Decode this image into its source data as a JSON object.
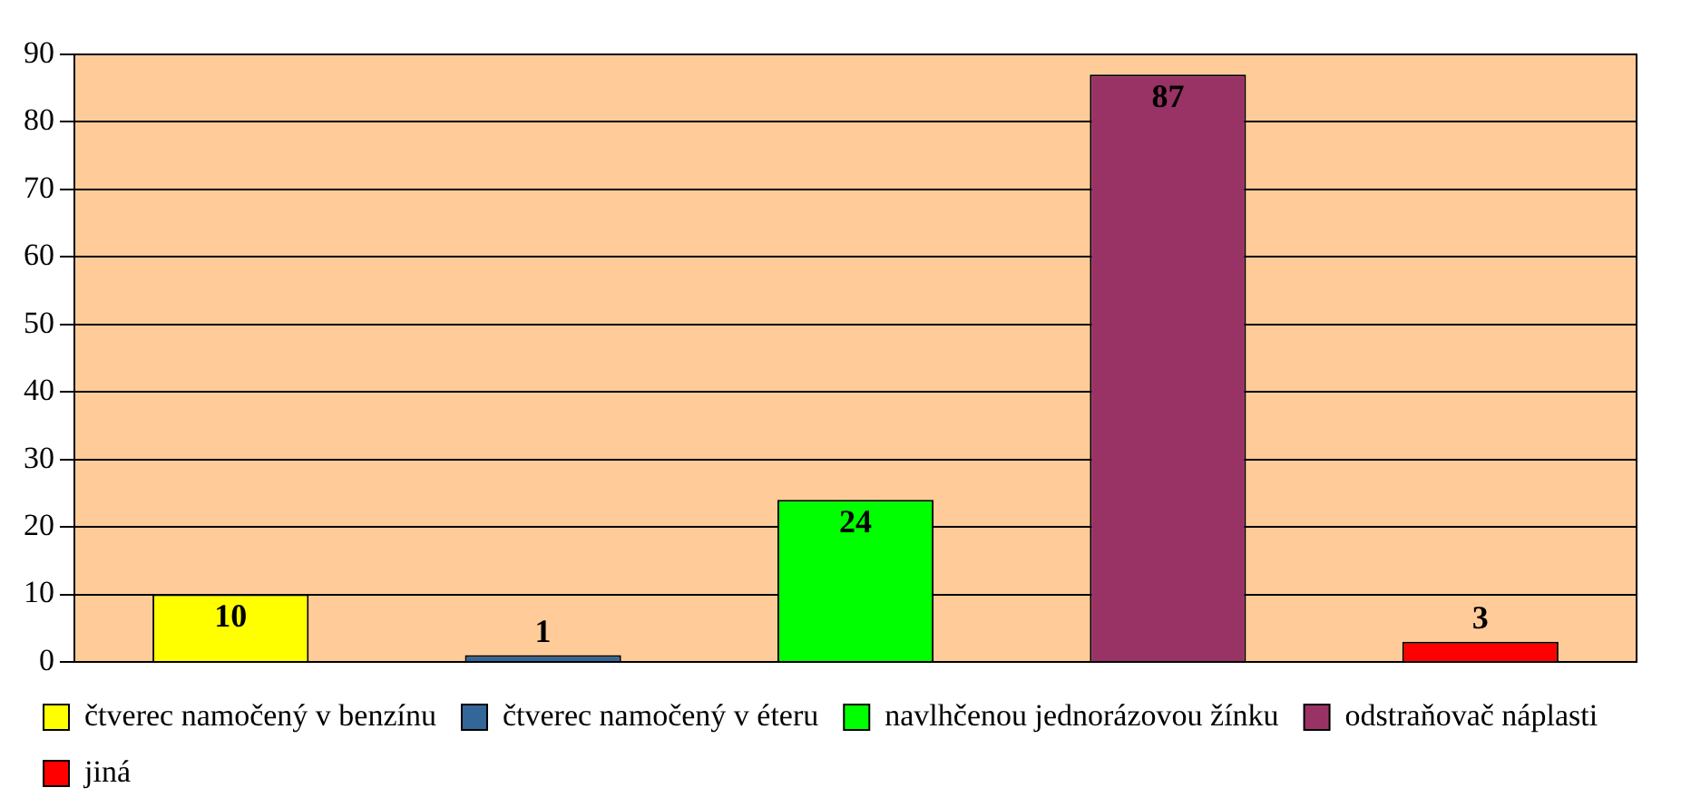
{
  "chart_data": {
    "type": "bar",
    "categories": [
      null,
      null,
      null,
      null,
      null
    ],
    "series": [
      {
        "name": "čtverec namočený v benzínu",
        "color": "#ffff00",
        "values": [
          10,
          null,
          null,
          null,
          null
        ]
      },
      {
        "name": "čtverec namočený v éteru",
        "color": "#336699",
        "values": [
          null,
          1,
          null,
          null,
          null
        ]
      },
      {
        "name": "navlhčenou jednorázovou žínku",
        "color": "#00ff00",
        "values": [
          null,
          null,
          24,
          null,
          null
        ]
      },
      {
        "name": "odstraňovač náplasti",
        "color": "#993366",
        "values": [
          null,
          null,
          null,
          87,
          null
        ]
      },
      {
        "name": "jiná",
        "color": "#ff0000",
        "values": [
          null,
          null,
          null,
          null,
          3
        ]
      }
    ],
    "ylim": [
      0,
      90
    ],
    "yticks": [
      0,
      10,
      20,
      30,
      40,
      50,
      60,
      70,
      80,
      90
    ],
    "grid": "y",
    "legend": "bottom",
    "data_labels": true,
    "tick_labels": "y"
  }
}
